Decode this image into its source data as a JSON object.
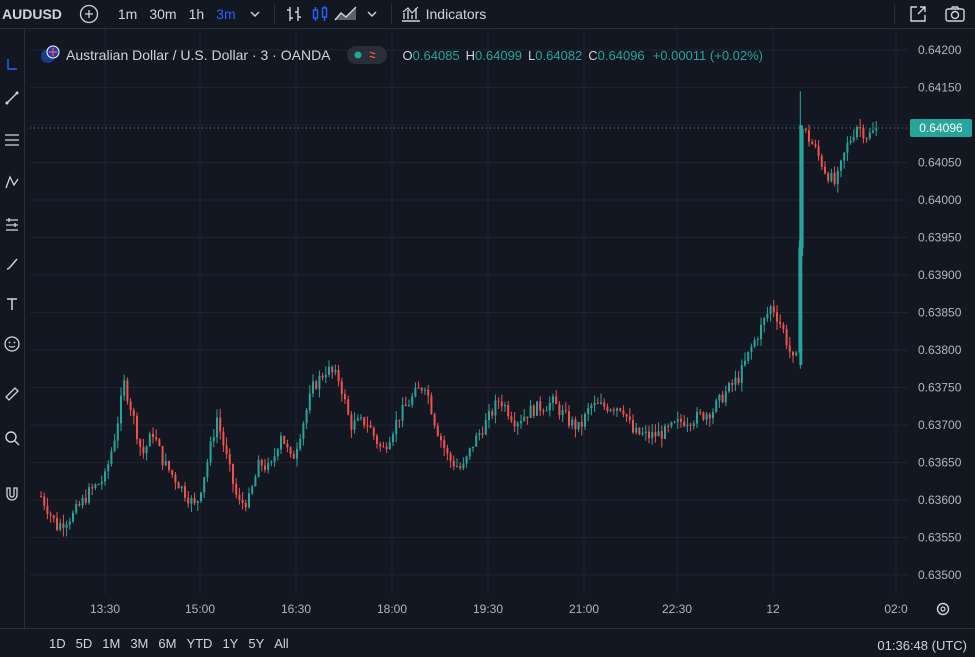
{
  "toolbar": {
    "symbol": "AUDUSD",
    "intervals": [
      "1m",
      "30m",
      "1h",
      "3m"
    ],
    "active_interval": "3m",
    "indicators_label": "Indicators"
  },
  "legend": {
    "title": "Australian Dollar / U.S. Dollar · 3 · OANDA",
    "o_label": "O",
    "o_value": "0.64085",
    "h_label": "H",
    "h_value": "0.64099",
    "l_label": "L",
    "l_value": "0.64082",
    "c_label": "C",
    "c_value": "0.64096",
    "change": "+0.00011 (+0.02%)"
  },
  "bottom": {
    "ranges": [
      "1D",
      "5D",
      "1M",
      "3M",
      "6M",
      "YTD",
      "1Y",
      "5Y",
      "All"
    ],
    "clock": "01:36:48 (UTC)"
  },
  "colors": {
    "background": "#131722",
    "up": "#26a69a",
    "down": "#ef5350",
    "grid": "#1f2330",
    "last_price_bg": "#26a69a"
  },
  "chart_data": {
    "type": "candlestick",
    "title": "Australian Dollar / U.S. Dollar · 3 · OANDA",
    "ylim": [
      0.6348,
      0.6421
    ],
    "y_ticks": [
      "0.63500",
      "0.63550",
      "0.63600",
      "0.63650",
      "0.63700",
      "0.63750",
      "0.63800",
      "0.63850",
      "0.63900",
      "0.63950",
      "0.64000",
      "0.64050",
      "0.64100",
      "0.64150",
      "0.64200"
    ],
    "x_ticks": [
      "13:30",
      "15:00",
      "16:30",
      "18:00",
      "19:30",
      "21:00",
      "22:30",
      "12",
      "02:0"
    ],
    "last_price": "0.64096",
    "grid": true,
    "series": [
      {
        "close_path_points": [
          [
            "12:30",
            0.63605
          ],
          [
            "12:45",
            0.63565
          ],
          [
            "13:00",
            0.6358
          ],
          [
            "13:15",
            0.6361
          ],
          [
            "13:30",
            0.6363
          ],
          [
            "13:40",
            0.6369
          ],
          [
            "13:48",
            0.63755
          ],
          [
            "13:55",
            0.6372
          ],
          [
            "14:05",
            0.6366
          ],
          [
            "14:15",
            0.6369
          ],
          [
            "14:25",
            0.6365
          ],
          [
            "14:40",
            0.6362
          ],
          [
            "14:55",
            0.6359
          ],
          [
            "15:05",
            0.63645
          ],
          [
            "15:15",
            0.6371
          ],
          [
            "15:25",
            0.6365
          ],
          [
            "15:35",
            0.63595
          ],
          [
            "15:45",
            0.636
          ],
          [
            "15:55",
            0.6365
          ],
          [
            "16:05",
            0.6364
          ],
          [
            "16:15",
            0.6369
          ],
          [
            "16:25",
            0.6365
          ],
          [
            "16:35",
            0.637
          ],
          [
            "16:45",
            0.6375
          ],
          [
            "16:58",
            0.63775
          ],
          [
            "17:10",
            0.6376
          ],
          [
            "17:20",
            0.637
          ],
          [
            "17:35",
            0.63705
          ],
          [
            "17:50",
            0.63665
          ],
          [
            "18:05",
            0.6371
          ],
          [
            "18:20",
            0.6374
          ],
          [
            "18:30",
            0.63755
          ],
          [
            "18:40",
            0.637
          ],
          [
            "18:52",
            0.63655
          ],
          [
            "19:05",
            0.6364
          ],
          [
            "19:15",
            0.63675
          ],
          [
            "19:30",
            0.6371
          ],
          [
            "19:40",
            0.63735
          ],
          [
            "19:55",
            0.63705
          ],
          [
            "20:10",
            0.6372
          ],
          [
            "20:30",
            0.6373
          ],
          [
            "20:45",
            0.63705
          ],
          [
            "20:55",
            0.63695
          ],
          [
            "21:05",
            0.63725
          ],
          [
            "21:20",
            0.63725
          ],
          [
            "21:35",
            0.63725
          ],
          [
            "21:45",
            0.6369
          ],
          [
            "22:00",
            0.63685
          ],
          [
            "22:15",
            0.6369
          ],
          [
            "22:30",
            0.63705
          ],
          [
            "22:45",
            0.6371
          ],
          [
            "23:00",
            0.6372
          ],
          [
            "23:10",
            0.6374
          ],
          [
            "23:25",
            0.63765
          ],
          [
            "23:35",
            0.638
          ],
          [
            "23:45",
            0.6383
          ],
          [
            "23:55",
            0.6386
          ],
          [
            "00:05",
            0.6383
          ],
          [
            "00:15",
            0.63785
          ],
          [
            "00:20",
            0.6379
          ],
          [
            "00:22",
            0.641
          ],
          [
            "00:35",
            0.6407
          ],
          [
            "00:45",
            0.6404
          ],
          [
            "00:55",
            0.6402
          ],
          [
            "01:05",
            0.6407
          ],
          [
            "01:15",
            0.641
          ],
          [
            "01:25",
            0.64085
          ],
          [
            "01:36",
            0.64096
          ]
        ]
      }
    ]
  }
}
